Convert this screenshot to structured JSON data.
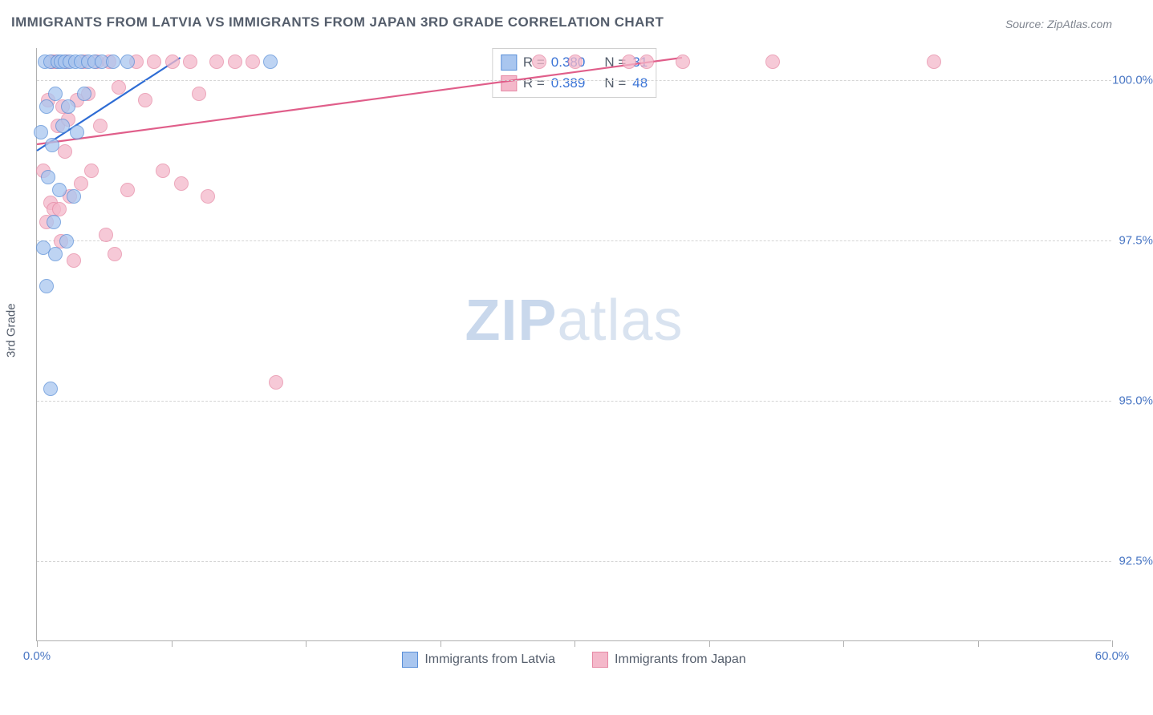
{
  "title": "IMMIGRANTS FROM LATVIA VS IMMIGRANTS FROM JAPAN 3RD GRADE CORRELATION CHART",
  "source": "Source: ZipAtlas.com",
  "yaxis_title": "3rd Grade",
  "watermark_bold": "ZIP",
  "watermark_rest": "atlas",
  "chart": {
    "type": "scatter",
    "background_color": "#ffffff",
    "grid_color": "#d5d5d5",
    "axis_color": "#b0b0b0",
    "label_color": "#4a77c4",
    "title_color": "#555e6c",
    "title_fontsize": 17,
    "label_fontsize": 15,
    "marker_radius": 8,
    "marker_opacity": 0.75,
    "xlim": [
      0,
      60
    ],
    "ylim": [
      91.25,
      100.5
    ],
    "xtick_step": 7.5,
    "xtick_labels": {
      "0": "0.0%",
      "60": "60.0%"
    },
    "ytick_step": 2.5,
    "ytick_labels": {
      "92.5": "92.5%",
      "95": "95.0%",
      "97.5": "97.5%",
      "100": "100.0%"
    }
  },
  "series": [
    {
      "name": "Immigrants from Latvia",
      "fill": "#a9c6ef",
      "stroke": "#5a8fd8",
      "line_stroke": "#2e6cd4",
      "R_label": "R =",
      "R": "0.380",
      "N_label": "N =",
      "N": "31",
      "trend": {
        "x1": 0,
        "y1": 98.9,
        "x2": 8,
        "y2": 100.35
      },
      "points": [
        [
          0.2,
          99.2
        ],
        [
          0.3,
          97.4
        ],
        [
          0.4,
          100.3
        ],
        [
          0.5,
          96.8
        ],
        [
          0.5,
          99.6
        ],
        [
          0.6,
          98.5
        ],
        [
          0.7,
          95.2
        ],
        [
          0.7,
          100.3
        ],
        [
          0.8,
          99.0
        ],
        [
          0.9,
          97.8
        ],
        [
          1.0,
          99.8
        ],
        [
          1.0,
          97.3
        ],
        [
          1.1,
          100.3
        ],
        [
          1.2,
          98.3
        ],
        [
          1.3,
          100.3
        ],
        [
          1.4,
          99.3
        ],
        [
          1.5,
          100.3
        ],
        [
          1.6,
          97.5
        ],
        [
          1.7,
          99.6
        ],
        [
          1.8,
          100.3
        ],
        [
          2.0,
          98.2
        ],
        [
          2.1,
          100.3
        ],
        [
          2.2,
          99.2
        ],
        [
          2.4,
          100.3
        ],
        [
          2.6,
          99.8
        ],
        [
          2.8,
          100.3
        ],
        [
          3.2,
          100.3
        ],
        [
          3.6,
          100.3
        ],
        [
          4.2,
          100.3
        ],
        [
          5.0,
          100.3
        ],
        [
          13.0,
          100.3
        ]
      ]
    },
    {
      "name": "Immigrants from Japan",
      "fill": "#f4b8ca",
      "stroke": "#e689a5",
      "line_stroke": "#e05e8a",
      "R_label": "R =",
      "R": "0.389",
      "N_label": "N =",
      "N": "48",
      "trend": {
        "x1": 0,
        "y1": 99.0,
        "x2": 36,
        "y2": 100.35
      },
      "points": [
        [
          0.3,
          98.6
        ],
        [
          0.5,
          97.8
        ],
        [
          0.6,
          99.7
        ],
        [
          0.7,
          98.1
        ],
        [
          0.8,
          100.3
        ],
        [
          0.9,
          98.0
        ],
        [
          1.0,
          100.3
        ],
        [
          1.1,
          99.3
        ],
        [
          1.2,
          98.0
        ],
        [
          1.3,
          97.5
        ],
        [
          1.4,
          99.6
        ],
        [
          1.5,
          98.9
        ],
        [
          1.6,
          100.3
        ],
        [
          1.7,
          99.4
        ],
        [
          1.8,
          98.2
        ],
        [
          2.0,
          97.2
        ],
        [
          2.2,
          99.7
        ],
        [
          2.4,
          98.4
        ],
        [
          2.6,
          100.3
        ],
        [
          2.8,
          99.8
        ],
        [
          3.0,
          98.6
        ],
        [
          3.3,
          100.3
        ],
        [
          3.5,
          99.3
        ],
        [
          3.8,
          97.6
        ],
        [
          4.0,
          100.3
        ],
        [
          4.3,
          97.3
        ],
        [
          4.5,
          99.9
        ],
        [
          5.0,
          98.3
        ],
        [
          5.5,
          100.3
        ],
        [
          6.0,
          99.7
        ],
        [
          6.5,
          100.3
        ],
        [
          7.0,
          98.6
        ],
        [
          7.5,
          100.3
        ],
        [
          8.0,
          98.4
        ],
        [
          8.5,
          100.3
        ],
        [
          9.0,
          99.8
        ],
        [
          9.5,
          98.2
        ],
        [
          10.0,
          100.3
        ],
        [
          11.0,
          100.3
        ],
        [
          12.0,
          100.3
        ],
        [
          13.3,
          95.3
        ],
        [
          28.0,
          100.3
        ],
        [
          30.0,
          100.3
        ],
        [
          33.0,
          100.3
        ],
        [
          34.0,
          100.3
        ],
        [
          36.0,
          100.3
        ],
        [
          41.0,
          100.3
        ],
        [
          50.0,
          100.3
        ]
      ]
    }
  ]
}
